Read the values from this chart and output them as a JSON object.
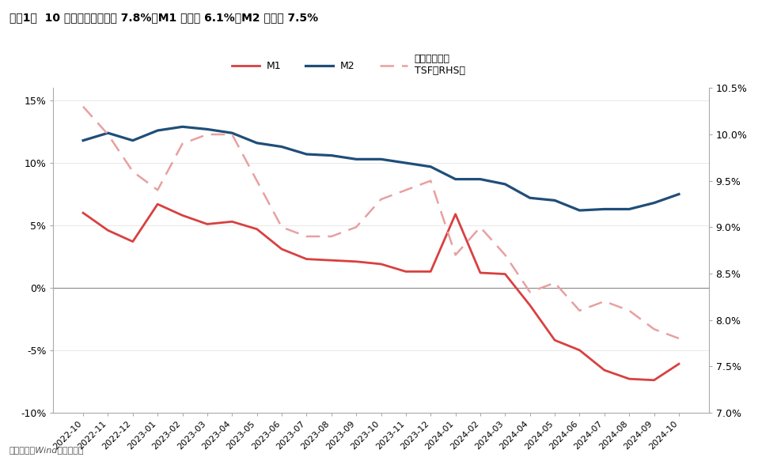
{
  "title": "图表1：  10 月社融存量同比增 7.8%、M1 同比减 6.1%、M2 同比增 7.5%",
  "footnote": "资料来源：Wind，中信建投",
  "labels": [
    "2022-10",
    "2022-11",
    "2022-12",
    "2023-01",
    "2023-02",
    "2023-03",
    "2023-04",
    "2023-05",
    "2023-06",
    "2023-07",
    "2023-08",
    "2023-09",
    "2023-10",
    "2023-11",
    "2023-12",
    "2024-01",
    "2024-02",
    "2024-03",
    "2024-04",
    "2024-05",
    "2024-06",
    "2024-07",
    "2024-08",
    "2024-09",
    "2024-10"
  ],
  "M1": [
    6.0,
    4.6,
    3.7,
    6.7,
    5.8,
    5.1,
    5.3,
    4.7,
    3.1,
    2.3,
    2.2,
    2.1,
    1.9,
    1.3,
    1.3,
    5.9,
    1.2,
    1.1,
    -1.4,
    -4.2,
    -5.0,
    -6.6,
    -7.3,
    -7.4,
    -6.1
  ],
  "M2": [
    11.8,
    12.4,
    11.8,
    12.6,
    12.9,
    12.7,
    12.4,
    11.6,
    11.3,
    10.7,
    10.6,
    10.3,
    10.3,
    10.0,
    9.7,
    8.7,
    8.7,
    8.3,
    7.2,
    7.0,
    6.2,
    6.3,
    6.3,
    6.8,
    7.5
  ],
  "TSF": [
    10.3,
    10.0,
    9.6,
    9.4,
    9.9,
    10.0,
    10.0,
    9.5,
    9.0,
    8.9,
    8.9,
    9.0,
    9.3,
    9.4,
    9.5,
    8.7,
    9.0,
    8.7,
    8.3,
    8.4,
    8.1,
    8.2,
    8.1,
    7.9,
    7.8
  ],
  "M1_color": "#d94040",
  "M2_color": "#1f4e79",
  "TSF_color": "#e8a0a0",
  "background_color": "#ffffff",
  "ylim_left": [
    -10,
    16
  ],
  "ylim_right": [
    7.0,
    10.5
  ],
  "yticks_left": [
    -10,
    -5,
    0,
    5,
    10,
    15
  ],
  "yticks_right": [
    7.0,
    7.5,
    8.0,
    8.5,
    9.0,
    9.5,
    10.0,
    10.5
  ],
  "legend_M1": "M1",
  "legend_M2": "M2",
  "legend_TSF_line1": "社融（右轴）",
  "legend_TSF_line2": "TSF（RHS）"
}
